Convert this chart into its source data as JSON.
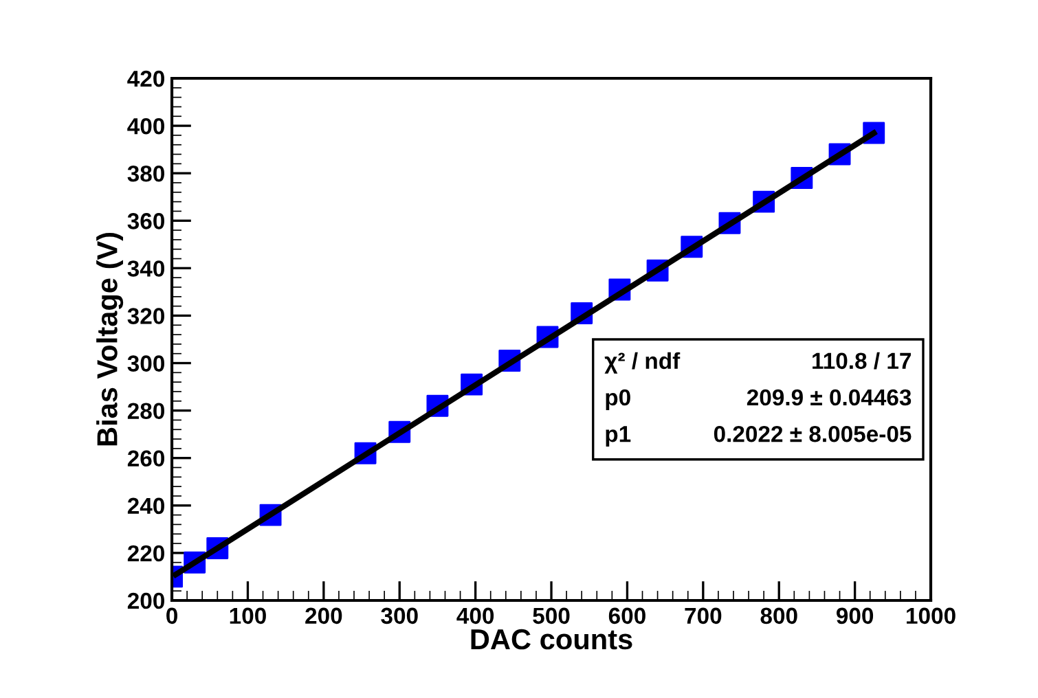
{
  "chart_data": {
    "type": "scatter",
    "xlabel": "DAC counts",
    "ylabel": "Bias Voltage (V)",
    "series": [
      {
        "color": "#0000ff",
        "marker": "square",
        "x": [
          0,
          30,
          60,
          130,
          255,
          300,
          350,
          395,
          445,
          495,
          540,
          590,
          640,
          685,
          735,
          780,
          830,
          880,
          925
        ],
        "values": [
          210,
          216,
          222,
          236,
          262,
          271,
          282,
          291,
          301,
          311,
          321,
          331,
          339,
          349,
          359,
          368,
          378,
          388,
          397
        ]
      },
      {
        "type": "line",
        "color": "#000000",
        "marker": "none",
        "line_style": "solid",
        "x": [
          5,
          925
        ],
        "values": [
          210.9,
          396.9
        ]
      }
    ],
    "xlim": [
      0,
      1000
    ],
    "xticks": [
      0,
      100,
      200,
      300,
      400,
      500,
      600,
      700,
      800,
      900,
      1000
    ],
    "ylim": [
      200,
      420
    ],
    "yticks": [
      200,
      220,
      240,
      260,
      280,
      300,
      320,
      340,
      360,
      380,
      400,
      420
    ],
    "grid": false,
    "legend": false,
    "annotations": [
      "χ² / ndf",
      "110.8 / 17",
      "p0",
      "209.9 ± 0.04463",
      "p1",
      "0.2022 ± 8.005e-05"
    ]
  }
}
